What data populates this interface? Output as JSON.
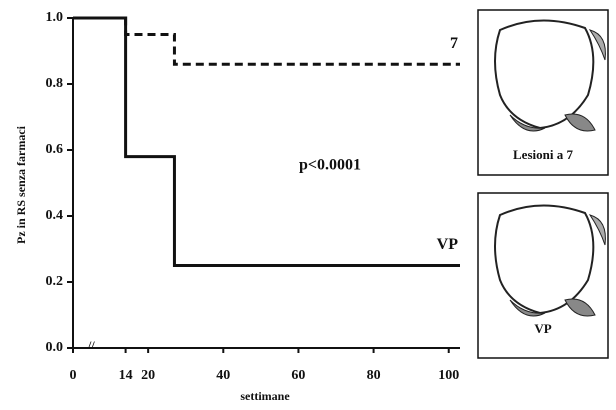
{
  "chart_data": {
    "type": "step",
    "y_label": "Pz in RS senza farmaci",
    "x_label": "settimane",
    "annotation": "p<0.0001",
    "xlim": [
      0,
      103
    ],
    "ylim": [
      0,
      1
    ],
    "xticks": [
      0,
      14,
      20,
      40,
      60,
      80,
      100
    ],
    "yticks": [
      {
        "value": 0,
        "label": "0.0"
      },
      0.2,
      0.4,
      0.6,
      0.8,
      {
        "value": 1,
        "label": "1.0"
      }
    ],
    "series": [
      {
        "name": "7",
        "color": "#111111",
        "dash": true,
        "x": [
          0,
          14,
          27,
          103
        ],
        "values": [
          1.0,
          0.95,
          0.86,
          0.86
        ]
      },
      {
        "name": "VP",
        "color": "#111111",
        "dash": false,
        "x": [
          0,
          14,
          27,
          103
        ],
        "values": [
          1.0,
          0.58,
          0.25,
          0.25
        ]
      }
    ]
  },
  "panels": [
    {
      "caption": "Lesioni a 7"
    },
    {
      "caption": "VP"
    }
  ]
}
